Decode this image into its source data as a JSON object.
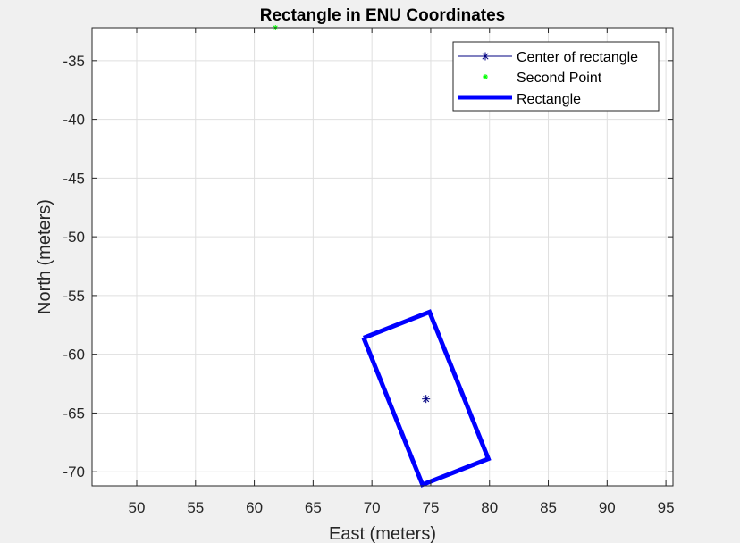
{
  "chart_data": {
    "type": "line",
    "title": "Rectangle in ENU Coordinates",
    "xlabel": "East (meters)",
    "ylabel": "North (meters)",
    "xlim": [
      46.2,
      95.6
    ],
    "ylim": [
      -71.2,
      -32.2
    ],
    "x_ticks": [
      50,
      55,
      60,
      65,
      70,
      75,
      80,
      85,
      90,
      95
    ],
    "y_ticks": [
      -35,
      -40,
      -45,
      -50,
      -55,
      -60,
      -65,
      -70
    ],
    "x_tick_labels": [
      "50",
      "55",
      "60",
      "65",
      "70",
      "75",
      "80",
      "85",
      "90",
      "95"
    ],
    "y_tick_labels": [
      "-35",
      "-40",
      "-45",
      "-50",
      "-55",
      "-60",
      "-65",
      "-70"
    ],
    "grid": true,
    "legend_position": "top-right",
    "series": [
      {
        "name": "Center of rectangle",
        "marker": "asterisk",
        "color": "#000080",
        "x": [
          74.6
        ],
        "y": [
          -63.8
        ]
      },
      {
        "name": "Second Point",
        "marker": "asterisk",
        "color": "#00ff00",
        "x": [
          61.8
        ],
        "y": [
          -32.2
        ]
      },
      {
        "name": "Rectangle",
        "marker": "none",
        "color": "#0000ff",
        "x": [
          69.3,
          74.9,
          79.9,
          74.3,
          69.3
        ],
        "y": [
          -58.6,
          -56.4,
          -68.9,
          -71.1,
          -58.6
        ]
      }
    ]
  }
}
